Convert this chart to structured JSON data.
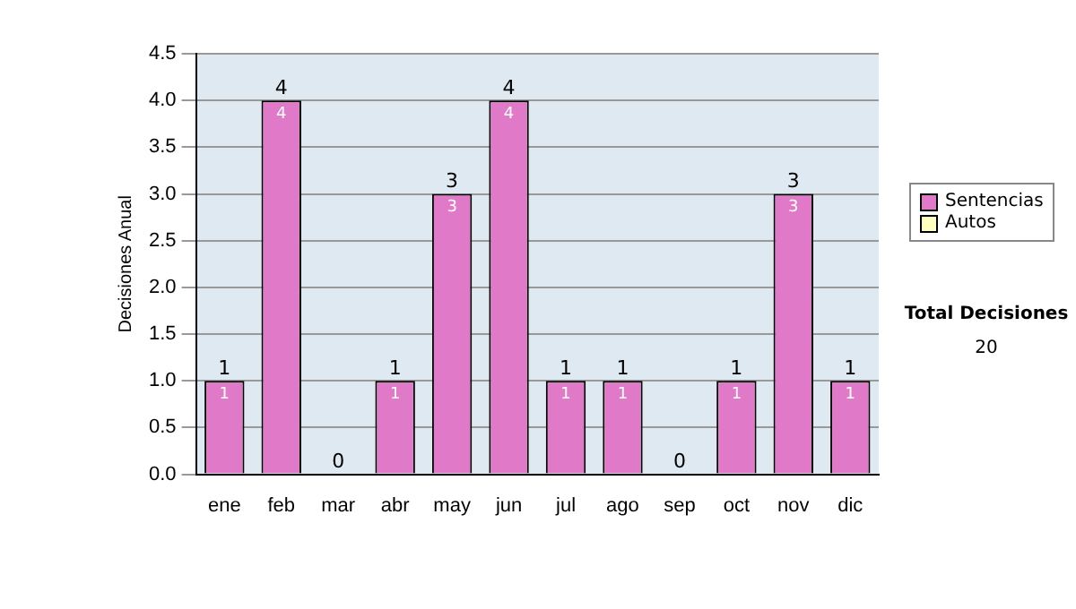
{
  "chart_data": {
    "type": "bar",
    "stacked": true,
    "ylabel": "Decisiones Anual",
    "categories": [
      "ene",
      "feb",
      "mar",
      "abr",
      "may",
      "jun",
      "jul",
      "ago",
      "sep",
      "oct",
      "nov",
      "dic"
    ],
    "series": [
      {
        "name": "Sentencias",
        "color": "#e07ac8",
        "values": [
          1,
          4,
          0,
          1,
          3,
          4,
          1,
          1,
          0,
          1,
          3,
          1
        ],
        "value_labels": [
          "1",
          "4",
          null,
          "1",
          "3",
          "4",
          "1",
          "1",
          null,
          "1",
          "3",
          "1"
        ]
      },
      {
        "name": "Autos",
        "color": "#ffffc0",
        "values": [
          0,
          0,
          0,
          0,
          0,
          0,
          0,
          0,
          0,
          0,
          0,
          0
        ]
      }
    ],
    "totals": [
      "1",
      "4",
      "0",
      "1",
      "3",
      "4",
      "1",
      "1",
      "0",
      "1",
      "3",
      "1"
    ],
    "ylim": [
      0,
      4.5
    ],
    "yticks": [
      {
        "value": 0,
        "label": "0.0"
      },
      {
        "value": 0.5,
        "label": "0.5"
      },
      {
        "value": 1,
        "label": "1.0"
      },
      {
        "value": 1.5,
        "label": "1.5"
      },
      {
        "value": 2,
        "label": "2.0"
      },
      {
        "value": 2.5,
        "label": "2.5"
      },
      {
        "value": 3,
        "label": "3.0"
      },
      {
        "value": 3.5,
        "label": "3.5"
      },
      {
        "value": 4,
        "label": "4.0"
      },
      {
        "value": 4.5,
        "label": "4.5"
      }
    ],
    "grid": "y",
    "legend": "right",
    "annotations": [
      "Total Decisiones",
      "20"
    ]
  }
}
